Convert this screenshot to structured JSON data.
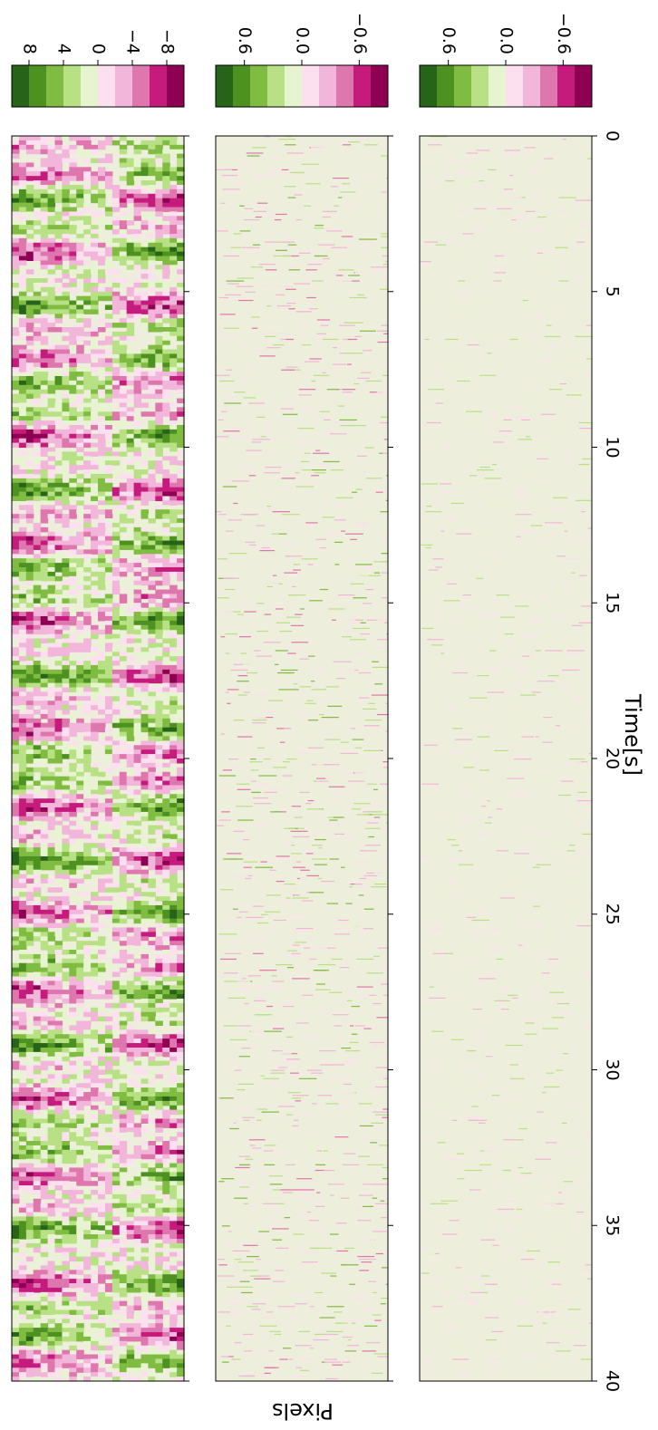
{
  "figure": {
    "xlabel": "Time[s]",
    "ylabel": "Pixels"
  },
  "colormap": [
    "#276419",
    "#4d9221",
    "#7fbc41",
    "#b8e186",
    "#e6f5d0",
    "#fde0ef",
    "#f1b6da",
    "#de77ae",
    "#c51b7d",
    "#8e0152"
  ],
  "chart_data": [
    {
      "type": "heatmap",
      "panel": "top",
      "x_range": [
        0,
        40
      ],
      "x_ticks": [
        0,
        5,
        10,
        15,
        20,
        25,
        30,
        35,
        40
      ],
      "x_tick_labels": [
        "0",
        "5",
        "10",
        "15",
        "20",
        "25",
        "30",
        "35",
        "40"
      ],
      "colorbar": {
        "range": [
          10,
          -10
        ],
        "ticks": [
          8,
          4,
          0,
          -4,
          -8
        ],
        "tick_labels": [
          "8",
          "4",
          "0",
          "−4",
          "−8"
        ]
      }
    },
    {
      "type": "heatmap",
      "panel": "middle",
      "x_range": [
        0,
        40
      ],
      "x_ticks": [
        0,
        5,
        10,
        15,
        20,
        25,
        30,
        35,
        40
      ],
      "x_tick_labels": [
        "0",
        "5",
        "10",
        "15",
        "20",
        "25",
        "30",
        "35",
        "40"
      ],
      "colorbar": {
        "range": [
          0.9,
          -0.9
        ],
        "ticks": [
          0.6,
          0.0,
          -0.6
        ],
        "tick_labels": [
          "0.6",
          "0.0",
          "−0.6"
        ]
      }
    },
    {
      "type": "heatmap",
      "panel": "bottom",
      "x_range": [
        0,
        40
      ],
      "x_ticks": [
        0,
        5,
        10,
        15,
        20,
        25,
        30,
        35,
        40
      ],
      "x_tick_labels": [
        "0",
        "5",
        "10",
        "15",
        "20",
        "25",
        "30",
        "35",
        "40"
      ],
      "colorbar": {
        "range": [
          0.9,
          -0.9
        ],
        "ticks": [
          0.6,
          0.0,
          -0.6
        ],
        "tick_labels": [
          "0.6",
          "0.0",
          "−0.6"
        ]
      }
    }
  ]
}
